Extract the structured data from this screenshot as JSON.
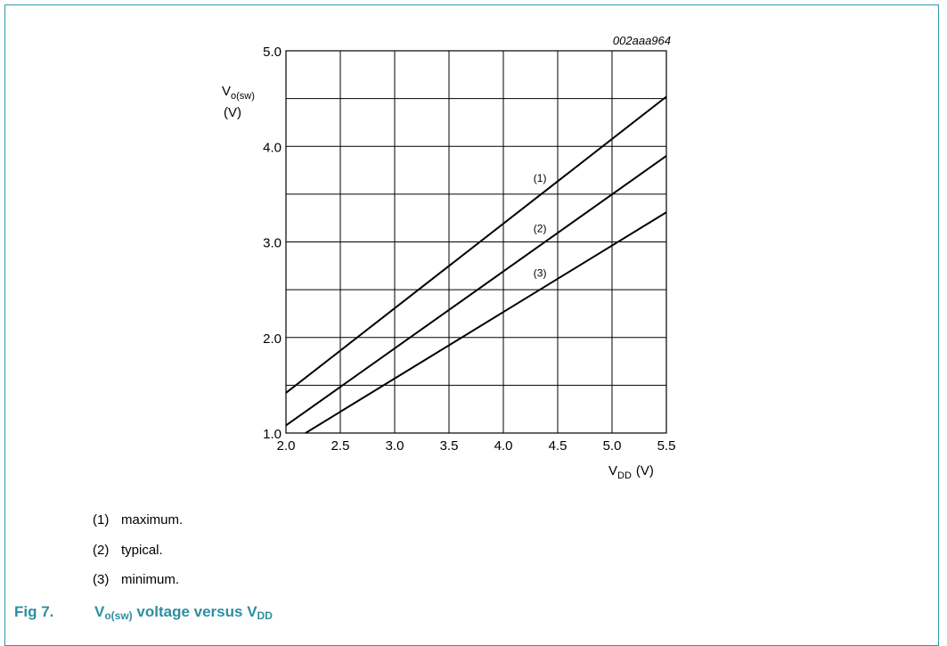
{
  "chart_data": {
    "type": "line",
    "figure_id": "002aaa964",
    "ylabel_main": "V",
    "ylabel_sub": "o(sw)",
    "ylabel_unit": "(V)",
    "xlabel_main": "V",
    "xlabel_sub": "DD",
    "xlabel_unit": "(V)",
    "xlim": [
      2.0,
      5.5
    ],
    "ylim": [
      1.0,
      5.0
    ],
    "x_ticks": [
      "2.0",
      "2.5",
      "3.0",
      "3.5",
      "4.0",
      "4.5",
      "5.0",
      "5.5"
    ],
    "y_ticks": [
      "1.0",
      "2.0",
      "3.0",
      "4.0",
      "5.0"
    ],
    "grid": true,
    "series": [
      {
        "name": "(1)",
        "x": [
          2.0,
          5.5
        ],
        "y": [
          1.42,
          4.52
        ],
        "label_at": 4.37
      },
      {
        "name": "(2)",
        "x": [
          2.0,
          5.5
        ],
        "y": [
          1.08,
          3.9
        ],
        "label_at": 4.37
      },
      {
        "name": "(3)",
        "x": [
          2.18,
          5.5
        ],
        "y": [
          1.0,
          3.31
        ],
        "label_at": 4.37
      }
    ]
  },
  "notes": [
    {
      "num": "(1)",
      "text": "maximum."
    },
    {
      "num": "(2)",
      "text": "typical."
    },
    {
      "num": "(3)",
      "text": "minimum."
    }
  ],
  "caption": {
    "fig_num": "Fig 7.",
    "v1": "V",
    "v1_sub": "o(sw)",
    "mid": " voltage versus ",
    "v2": "V",
    "v2_sub": "DD"
  },
  "colors": {
    "frame": "#2d9aa6",
    "caption": "#2d8ea1",
    "ink": "#000000"
  }
}
